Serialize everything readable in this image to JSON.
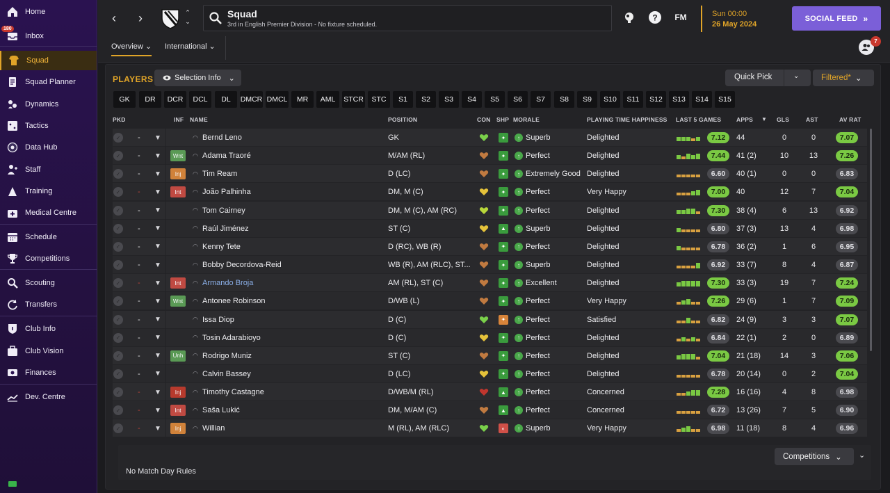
{
  "sidebar": {
    "items": [
      {
        "label": "Home",
        "icon": "home-icon"
      },
      {
        "label": "Inbox",
        "icon": "inbox-icon",
        "badge": "180"
      },
      {
        "label": "Squad",
        "icon": "squad-icon",
        "active": true
      },
      {
        "label": "Squad Planner",
        "icon": "planner-icon"
      },
      {
        "label": "Dynamics",
        "icon": "dynamics-icon"
      },
      {
        "label": "Tactics",
        "icon": "tactics-icon"
      },
      {
        "label": "Data Hub",
        "icon": "data-hub-icon"
      },
      {
        "label": "Staff",
        "icon": "staff-icon"
      },
      {
        "label": "Training",
        "icon": "training-icon"
      },
      {
        "label": "Medical Centre",
        "icon": "medical-icon"
      },
      {
        "label": "Schedule",
        "icon": "schedule-icon"
      },
      {
        "label": "Competitions",
        "icon": "trophy-icon"
      },
      {
        "label": "Scouting",
        "icon": "scouting-icon"
      },
      {
        "label": "Transfers",
        "icon": "transfers-icon"
      },
      {
        "label": "Club Info",
        "icon": "club-info-icon"
      },
      {
        "label": "Club Vision",
        "icon": "club-vision-icon"
      },
      {
        "label": "Finances",
        "icon": "finances-icon"
      },
      {
        "label": "Dev. Centre",
        "icon": "dev-centre-icon"
      }
    ]
  },
  "header": {
    "title": "Squad",
    "subtitle": "3rd in English Premier Division - No fixture scheduled.",
    "fm_label": "FM",
    "date_line1": "Sun 00:00",
    "date_line2": "26 May 2024",
    "social_label": "SOCIAL FEED",
    "tabs": [
      {
        "label": "Overview"
      },
      {
        "label": "International"
      }
    ],
    "user_badge": "7"
  },
  "players_panel": {
    "title": "PLAYERS",
    "selection_info": "Selection Info",
    "quick_pick": "Quick Pick",
    "filtered": "Filtered*",
    "positions": [
      "GK",
      "DR",
      "DCR",
      "DCL",
      "DL",
      "DMCR",
      "DMCL",
      "MR",
      "AML",
      "STCR",
      "STC",
      "S1",
      "S2",
      "S3",
      "S4",
      "S5",
      "S6",
      "S7",
      "S8",
      "S9",
      "S10",
      "S11",
      "S12",
      "S13",
      "S14",
      "S15"
    ],
    "columns": {
      "pkd": "PKD",
      "inf": "INF",
      "name": "NAME",
      "position": "POSITION",
      "con": "CON",
      "shp": "SHP",
      "morale": "MORALE",
      "pth": "PLAYING TIME HAPPINESS",
      "last5": "LAST 5 GAMES",
      "apps": "APPS",
      "gls": "GLS",
      "ast": "AST",
      "avrat": "AV RAT"
    },
    "rows": [
      {
        "dash": "-",
        "inf": "",
        "name": "Bernd Leno",
        "position": "GK",
        "morale": "Superb",
        "pth": "Delighted",
        "last5": "7.12",
        "apps": "44",
        "gls": "0",
        "ast": "0",
        "avrat": "7.07"
      },
      {
        "dash": "-",
        "inf": "Wnt",
        "name": "Adama Traoré",
        "position": "M/AM (RL)",
        "morale": "Perfect",
        "pth": "Delighted",
        "last5": "7.44",
        "apps": "41 (2)",
        "gls": "10",
        "ast": "13",
        "avrat": "7.26"
      },
      {
        "dash": "-",
        "inf": "Inj",
        "name": "Tim Ream",
        "position": "D (LC)",
        "morale": "Extremely Good",
        "pth": "Delighted",
        "last5": "6.60",
        "apps": "40 (1)",
        "gls": "0",
        "ast": "0",
        "avrat": "6.83"
      },
      {
        "dash": "-",
        "inf": "Int",
        "name": "João Palhinha",
        "position": "DM, M (C)",
        "morale": "Perfect",
        "pth": "Very Happy",
        "last5": "7.00",
        "apps": "40",
        "gls": "12",
        "ast": "7",
        "avrat": "7.04"
      },
      {
        "dash": "-",
        "inf": "",
        "name": "Tom Cairney",
        "position": "DM, M (C), AM (RC)",
        "morale": "Perfect",
        "pth": "Delighted",
        "last5": "7.30",
        "apps": "38 (4)",
        "gls": "6",
        "ast": "13",
        "avrat": "6.92"
      },
      {
        "dash": "-",
        "inf": "",
        "name": "Raúl Jiménez",
        "position": "ST (C)",
        "morale": "Superb",
        "pth": "Delighted",
        "last5": "6.80",
        "apps": "37 (3)",
        "gls": "13",
        "ast": "4",
        "avrat": "6.98"
      },
      {
        "dash": "-",
        "inf": "",
        "name": "Kenny Tete",
        "position": "D (RC), WB (R)",
        "morale": "Perfect",
        "pth": "Delighted",
        "last5": "6.78",
        "apps": "36 (2)",
        "gls": "1",
        "ast": "6",
        "avrat": "6.95"
      },
      {
        "dash": "-",
        "inf": "",
        "name": "Bobby Decordova-Reid",
        "position": "WB (R), AM (RLC), ST...",
        "morale": "Superb",
        "pth": "Delighted",
        "last5": "6.92",
        "apps": "33 (7)",
        "gls": "8",
        "ast": "4",
        "avrat": "6.87"
      },
      {
        "dash": "-",
        "inf": "Int",
        "name": "Armando Broja",
        "position": "AM (RL), ST (C)",
        "morale": "Excellent",
        "pth": "Delighted",
        "last5": "7.30",
        "apps": "33 (3)",
        "gls": "19",
        "ast": "7",
        "avrat": "7.24"
      },
      {
        "dash": "-",
        "inf": "Wnt",
        "name": "Antonee Robinson",
        "position": "D/WB (L)",
        "morale": "Perfect",
        "pth": "Very Happy",
        "last5": "7.26",
        "apps": "29 (6)",
        "gls": "1",
        "ast": "7",
        "avrat": "7.09"
      },
      {
        "dash": "-",
        "inf": "",
        "name": "Issa Diop",
        "position": "D (C)",
        "morale": "Perfect",
        "pth": "Satisfied",
        "last5": "6.82",
        "apps": "24 (9)",
        "gls": "3",
        "ast": "3",
        "avrat": "7.07"
      },
      {
        "dash": "-",
        "inf": "",
        "name": "Tosin Adarabioyo",
        "position": "D (C)",
        "morale": "Perfect",
        "pth": "Delighted",
        "last5": "6.84",
        "apps": "22 (1)",
        "gls": "2",
        "ast": "0",
        "avrat": "6.89"
      },
      {
        "dash": "-",
        "inf": "Unh",
        "name": "Rodrigo Muniz",
        "position": "ST (C)",
        "morale": "Perfect",
        "pth": "Delighted",
        "last5": "7.04",
        "apps": "21 (18)",
        "gls": "14",
        "ast": "3",
        "avrat": "7.06"
      },
      {
        "dash": "-",
        "inf": "",
        "name": "Calvin Bassey",
        "position": "D (LC)",
        "morale": "Perfect",
        "pth": "Delighted",
        "last5": "6.78",
        "apps": "20 (14)",
        "gls": "0",
        "ast": "2",
        "avrat": "7.04"
      },
      {
        "dash": "-",
        "inf": "Inj",
        "name": "Timothy Castagne",
        "position": "D/WB/M (RL)",
        "morale": "Perfect",
        "pth": "Concerned",
        "last5": "7.28",
        "apps": "16 (16)",
        "gls": "4",
        "ast": "8",
        "avrat": "6.98"
      },
      {
        "dash": "-",
        "inf": "Int",
        "name": "Saša Lukić",
        "position": "DM, M/AM (C)",
        "morale": "Perfect",
        "pth": "Concerned",
        "last5": "6.72",
        "apps": "13 (26)",
        "gls": "7",
        "ast": "5",
        "avrat": "6.90"
      },
      {
        "dash": "-",
        "inf": "Inj",
        "name": "Willian",
        "position": "M (RL), AM (RLC)",
        "morale": "Superb",
        "pth": "Very Happy",
        "last5": "6.98",
        "apps": "11 (18)",
        "gls": "8",
        "ast": "4",
        "avrat": "6.96"
      }
    ],
    "competitions": "Competitions",
    "match_day_rules": "No Match Day Rules"
  }
}
